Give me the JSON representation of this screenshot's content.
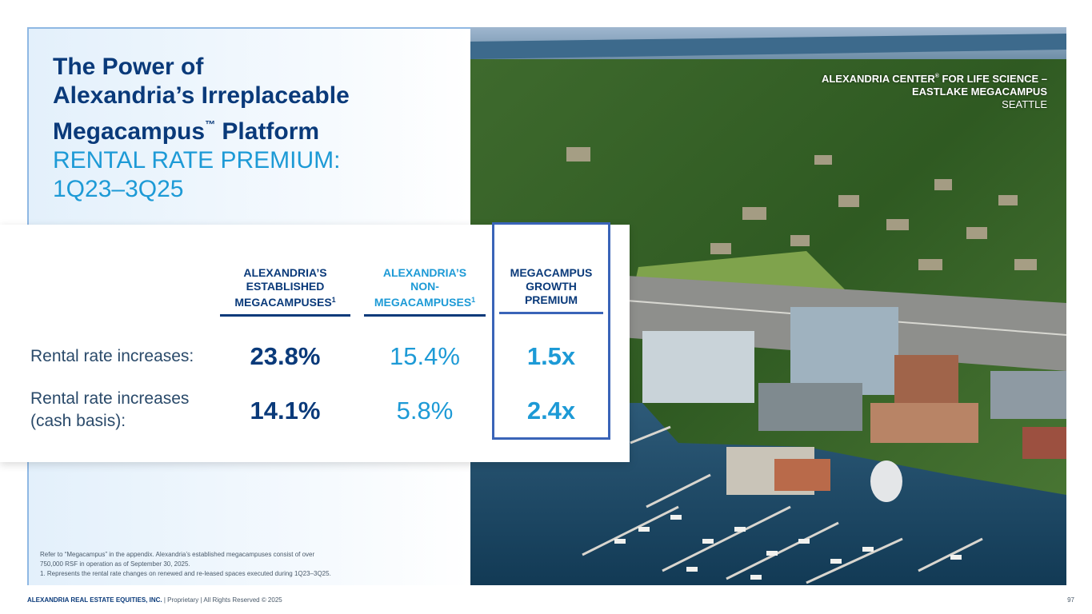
{
  "title": {
    "line1": "The Power of",
    "line2": "Alexandria’s Irreplaceable",
    "line3_prefix": "Megacampus",
    "line3_tm": "™",
    "line3_suffix": " Platform",
    "sub1": "RENTAL RATE PREMIUM:",
    "sub2": "1Q23–3Q25"
  },
  "caption": {
    "line1_prefix": "ALEXANDRIA CENTER",
    "line1_reg": "®",
    "line1_suffix": " FOR LIFE SCIENCE –",
    "line2": "EASTLAKE MEGACAMPUS",
    "line3": "SEATTLE"
  },
  "table": {
    "columns": [
      {
        "l1": "ALEXANDRIA’S",
        "l2": "ESTABLISHED",
        "l3": "MEGACAMPUSES",
        "sup": "1"
      },
      {
        "l1": "ALEXANDRIA’S",
        "l2": "NON-",
        "l3": "MEGACAMPUSES",
        "sup": "1"
      },
      {
        "l1": "MEGACAMPUS",
        "l2": "GROWTH",
        "l3": "PREMIUM",
        "sup": ""
      }
    ],
    "rows": [
      {
        "label_l1": "Rental rate increases:",
        "label_l2": "",
        "established": "23.8%",
        "non": "15.4%",
        "premium": "1.5x"
      },
      {
        "label_l1": "Rental rate increases",
        "label_l2": "(cash basis):",
        "established": "14.1%",
        "non": "5.8%",
        "premium": "2.4x"
      }
    ]
  },
  "footnote": {
    "line1": "Refer to “Megacampus” in the appendix. Alexandria’s established megacampuses consist of over",
    "line2": "750,000 RSF in operation as of September 30, 2025.",
    "line3": "1.   Represents the rental rate changes on renewed and re-leased spaces executed during 1Q23–3Q25."
  },
  "footer": {
    "company": "ALEXANDRIA REAL ESTATE EQUITIES, INC.",
    "rest": " | Proprietary | All Rights Reserved © 2025"
  },
  "page_number": "97",
  "colors": {
    "navy": "#0a3a7a",
    "blue": "#1d9ad6",
    "box": "#3a64b8"
  }
}
